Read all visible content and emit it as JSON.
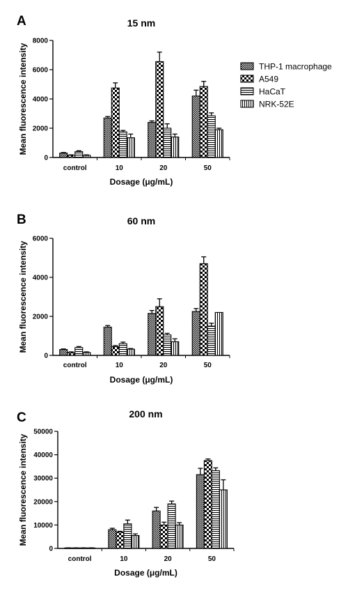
{
  "legend": [
    "THP-1 macrophage",
    "A549",
    "HaCaT",
    "NRK-52E"
  ],
  "patterns": {
    "THP-1 macrophage": "dense-cross",
    "A549": "checker",
    "HaCaT": "horizontal-lines",
    "NRK-52E": "vertical-lines"
  },
  "colors": {
    "ink": "#000000",
    "background": "#ffffff"
  },
  "chart_data": [
    {
      "panel": "A",
      "type": "bar",
      "title": "15 nm",
      "xlabel": "Dosage (μg/mL)",
      "ylabel": "Mean fluorescence intensity",
      "ylim": [
        0,
        8000
      ],
      "yticks": [
        0,
        2000,
        4000,
        6000,
        8000
      ],
      "ytick_labels": [
        "0",
        "2000",
        "4000",
        "6000",
        "8000"
      ],
      "categories": [
        "control",
        "10",
        "20",
        "50"
      ],
      "series": [
        {
          "name": "THP-1 macrophage",
          "values": [
            300,
            2700,
            2400,
            4200
          ],
          "errors": [
            40,
            100,
            100,
            400
          ]
        },
        {
          "name": "A549",
          "values": [
            150,
            4750,
            6550,
            4850
          ],
          "errors": [
            30,
            350,
            650,
            350
          ]
        },
        {
          "name": "HaCaT",
          "values": [
            400,
            1750,
            2000,
            2850
          ],
          "errors": [
            60,
            100,
            300,
            200
          ]
        },
        {
          "name": "NRK-52E",
          "values": [
            150,
            1350,
            1400,
            1900
          ],
          "errors": [
            30,
            250,
            200,
            100
          ]
        }
      ]
    },
    {
      "panel": "B",
      "type": "bar",
      "title": "60 nm",
      "xlabel": "Dosage (μg/mL)",
      "ylabel": "Mean fluorescence intensity",
      "ylim": [
        0,
        6000
      ],
      "yticks": [
        0,
        2000,
        4000,
        6000
      ],
      "ytick_labels": [
        "0",
        "2000",
        "4000",
        "6000"
      ],
      "categories": [
        "control",
        "10",
        "20",
        "50"
      ],
      "series": [
        {
          "name": "THP-1 macrophage",
          "values": [
            300,
            1450,
            2150,
            2250
          ],
          "errors": [
            30,
            80,
            150,
            150
          ]
        },
        {
          "name": "A549",
          "values": [
            150,
            450,
            2500,
            4700
          ],
          "errors": [
            30,
            50,
            400,
            350
          ]
        },
        {
          "name": "HaCaT",
          "values": [
            400,
            600,
            1050,
            1500
          ],
          "errors": [
            50,
            80,
            80,
            150
          ]
        },
        {
          "name": "NRK-52E",
          "values": [
            150,
            320,
            700,
            2200
          ],
          "errors": [
            30,
            30,
            150,
            0
          ]
        }
      ]
    },
    {
      "panel": "C",
      "type": "bar",
      "title": "200 nm",
      "xlabel": "Dosage (μg/mL)",
      "ylabel": "Mean fluorescence intensity",
      "ylim": [
        0,
        50000
      ],
      "yticks": [
        0,
        10000,
        20000,
        30000,
        40000,
        50000
      ],
      "ytick_labels": [
        "0",
        "10000",
        "20000",
        "30000",
        "40000",
        "50000"
      ],
      "categories": [
        "control",
        "10",
        "20",
        "50"
      ],
      "series": [
        {
          "name": "THP-1 macrophage",
          "values": [
            200,
            8000,
            16000,
            31500
          ],
          "errors": [
            50,
            600,
            1500,
            2700
          ]
        },
        {
          "name": "A549",
          "values": [
            200,
            7000,
            10000,
            37500
          ],
          "errors": [
            50,
            300,
            1200,
            700
          ]
        },
        {
          "name": "HaCaT",
          "values": [
            200,
            10500,
            19000,
            33200
          ],
          "errors": [
            50,
            1600,
            1200,
            1200
          ]
        },
        {
          "name": "NRK-52E",
          "values": [
            200,
            5500,
            10000,
            25000
          ],
          "errors": [
            50,
            700,
            1000,
            4300
          ]
        }
      ]
    }
  ]
}
